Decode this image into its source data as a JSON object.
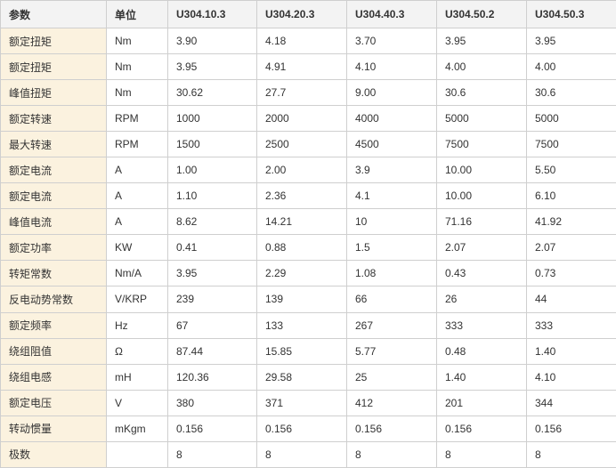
{
  "table": {
    "headers": [
      "参数",
      "单位",
      "U304.10.3",
      "U304.20.3",
      "U304.40.3",
      "U304.50.2",
      "U304.50.3"
    ],
    "rows": [
      [
        "额定扭矩",
        "Nm",
        "3.90",
        "4.18",
        "3.70",
        "3.95",
        "3.95"
      ],
      [
        "额定扭矩",
        "Nm",
        "3.95",
        "4.91",
        "4.10",
        "4.00",
        "4.00"
      ],
      [
        "峰值扭矩",
        "Nm",
        "30.62",
        "27.7",
        "9.00",
        "30.6",
        "30.6"
      ],
      [
        "额定转速",
        "RPM",
        "1000",
        "2000",
        "4000",
        "5000",
        "5000"
      ],
      [
        "最大转速",
        "RPM",
        "1500",
        "2500",
        "4500",
        "7500",
        "7500"
      ],
      [
        "额定电流",
        "A",
        "1.00",
        "2.00",
        "3.9",
        "10.00",
        "5.50"
      ],
      [
        "额定电流",
        "A",
        "1.10",
        "2.36",
        "4.1",
        "10.00",
        "6.10"
      ],
      [
        "峰值电流",
        "A",
        "8.62",
        "14.21",
        "10",
        "71.16",
        "41.92"
      ],
      [
        "额定功率",
        "KW",
        "0.41",
        "0.88",
        "1.5",
        "2.07",
        "2.07"
      ],
      [
        "转矩常数",
        "Nm/A",
        "3.95",
        "2.29",
        "1.08",
        "0.43",
        "0.73"
      ],
      [
        "反电动势常数",
        "V/KRP",
        "239",
        "139",
        "66",
        "26",
        "44"
      ],
      [
        "额定频率",
        "Hz",
        "67",
        "133",
        "267",
        "333",
        "333"
      ],
      [
        "绕组阻值",
        "Ω",
        "87.44",
        "15.85",
        "5.77",
        "0.48",
        "1.40"
      ],
      [
        "绕组电感",
        "mH",
        "120.36",
        "29.58",
        "25",
        "1.40",
        "4.10"
      ],
      [
        "额定电压",
        "V",
        "380",
        "371",
        "412",
        "201",
        "344"
      ],
      [
        "转动惯量",
        "mKgm",
        "0.156",
        "0.156",
        "0.156",
        "0.156",
        "0.156"
      ],
      [
        "极数",
        "",
        "8",
        "8",
        "8",
        "8",
        "8"
      ]
    ]
  }
}
